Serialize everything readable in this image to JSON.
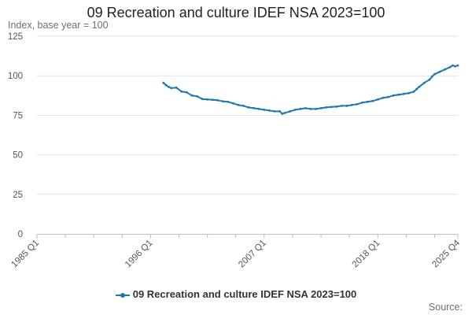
{
  "chart_data": {
    "type": "line",
    "title": "09 Recreation and culture IDEF NSA 2023=100",
    "ylabel": "Index, base year = 100",
    "xlabel": "",
    "ylim": [
      0,
      125
    ],
    "y_ticks": [
      "0",
      "25",
      "50",
      "75",
      "100",
      "125"
    ],
    "x_range": [
      1985.0,
      2025.75
    ],
    "x_ticks": [
      {
        "label": "1985 Q1",
        "x": 1985.0
      },
      {
        "label": "1996 Q1",
        "x": 1996.0
      },
      {
        "label": "2007 Q1",
        "x": 2007.0
      },
      {
        "label": "2018 Q1",
        "x": 2018.0
      },
      {
        "label": "2025 Q4",
        "x": 2025.75
      }
    ],
    "x_minor_ticks": [
      1987.75,
      1990.5,
      1993.25,
      1998.75,
      2001.5,
      2004.25,
      2009.75,
      2012.5,
      2015.25,
      2020.75,
      2023.5
    ],
    "grid": true,
    "series": [
      {
        "name": "09 Recreation and culture IDEF NSA 2023=100",
        "color": "#1f77b4",
        "points": [
          [
            1997.25,
            95.5
          ],
          [
            1997.5,
            94.0
          ],
          [
            1997.75,
            93.0
          ],
          [
            1998.0,
            92.2
          ],
          [
            1998.5,
            92.5
          ],
          [
            1999.0,
            90.0
          ],
          [
            1999.5,
            89.5
          ],
          [
            2000.0,
            87.5
          ],
          [
            2000.5,
            87.0
          ],
          [
            2001.0,
            85.3
          ],
          [
            2001.5,
            85.0
          ],
          [
            2002.0,
            84.8
          ],
          [
            2002.5,
            84.5
          ],
          [
            2003.0,
            83.8
          ],
          [
            2003.5,
            83.5
          ],
          [
            2004.0,
            82.5
          ],
          [
            2004.5,
            81.5
          ],
          [
            2005.0,
            81.0
          ],
          [
            2005.5,
            80.0
          ],
          [
            2006.0,
            79.5
          ],
          [
            2006.5,
            79.0
          ],
          [
            2007.0,
            78.5
          ],
          [
            2007.5,
            78.0
          ],
          [
            2008.0,
            77.5
          ],
          [
            2008.5,
            77.5
          ],
          [
            2008.75,
            76.0
          ],
          [
            2009.0,
            76.5
          ],
          [
            2009.5,
            77.5
          ],
          [
            2010.0,
            78.5
          ],
          [
            2010.5,
            79.0
          ],
          [
            2011.0,
            79.5
          ],
          [
            2011.5,
            79.0
          ],
          [
            2012.0,
            79.0
          ],
          [
            2012.5,
            79.5
          ],
          [
            2013.0,
            80.0
          ],
          [
            2013.5,
            80.3
          ],
          [
            2014.0,
            80.5
          ],
          [
            2014.5,
            81.0
          ],
          [
            2015.0,
            81.0
          ],
          [
            2015.5,
            81.5
          ],
          [
            2016.0,
            82.0
          ],
          [
            2016.5,
            83.0
          ],
          [
            2017.0,
            83.5
          ],
          [
            2017.5,
            84.0
          ],
          [
            2018.0,
            85.0
          ],
          [
            2018.5,
            86.0
          ],
          [
            2019.0,
            86.5
          ],
          [
            2019.5,
            87.5
          ],
          [
            2020.0,
            88.0
          ],
          [
            2020.5,
            88.5
          ],
          [
            2021.0,
            89.0
          ],
          [
            2021.5,
            90.0
          ],
          [
            2021.75,
            91.5
          ],
          [
            2022.0,
            93.0
          ],
          [
            2022.5,
            95.5
          ],
          [
            2023.0,
            97.5
          ],
          [
            2023.25,
            99.5
          ],
          [
            2023.5,
            101.0
          ],
          [
            2024.0,
            102.5
          ],
          [
            2024.5,
            104.0
          ],
          [
            2025.0,
            105.5
          ],
          [
            2025.25,
            106.5
          ],
          [
            2025.5,
            106.0
          ],
          [
            2025.75,
            106.5
          ]
        ]
      }
    ],
    "legend": "bottom-center",
    "source_label": "Source:"
  }
}
